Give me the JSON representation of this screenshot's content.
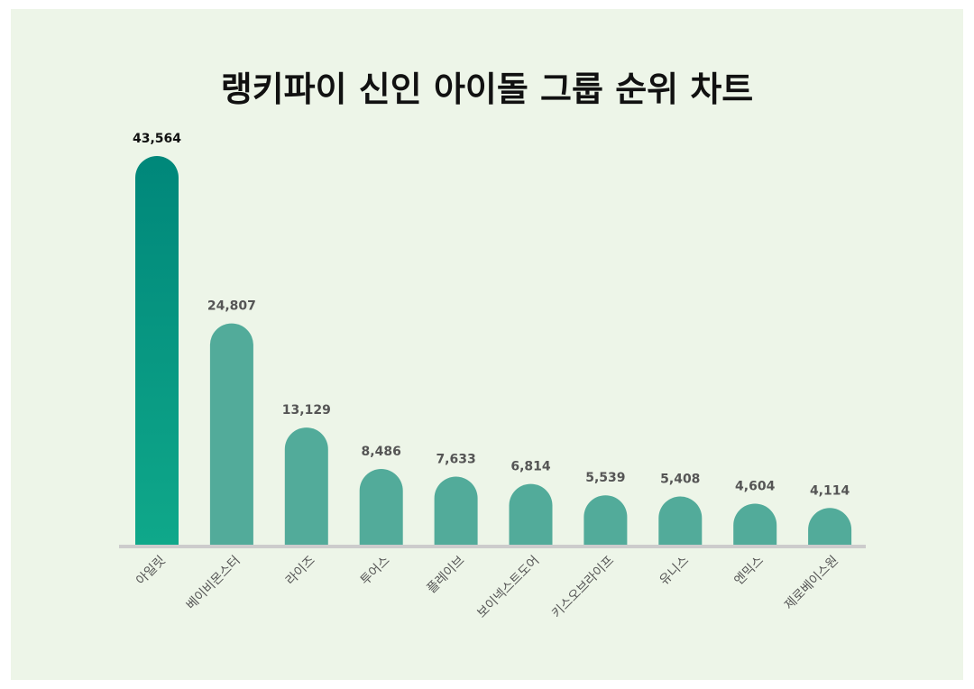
{
  "chart_data": {
    "type": "bar",
    "title": "랭키파이 신인 아이돌 그룹 순위 차트",
    "categories": [
      "아일릿",
      "베이비몬스터",
      "라이즈",
      "투어스",
      "플레이브",
      "보이넥스트도어",
      "키스오브라이프",
      "유니스",
      "엔믹스",
      "제로베이스원"
    ],
    "values": [
      43564,
      24807,
      13129,
      8486,
      7633,
      6814,
      5539,
      5408,
      4604,
      4114
    ],
    "value_labels": [
      "43,564",
      "24,807",
      "13,129",
      "8,486",
      "7,633",
      "6,814",
      "5,539",
      "5,408",
      "4,604",
      "4,114"
    ],
    "xlabel": "",
    "ylabel": "",
    "ylim": [
      0,
      45000
    ],
    "grid": false,
    "legend": "none"
  },
  "colors": {
    "background": "#edf5e8",
    "top_bar_dark": "#00877a",
    "top_bar_light": "#0fa88a",
    "bar": "#52ab9a",
    "baseline": "#cccccc",
    "top_value_text": "#111111",
    "value_text": "#555555",
    "category_text": "#555555"
  }
}
